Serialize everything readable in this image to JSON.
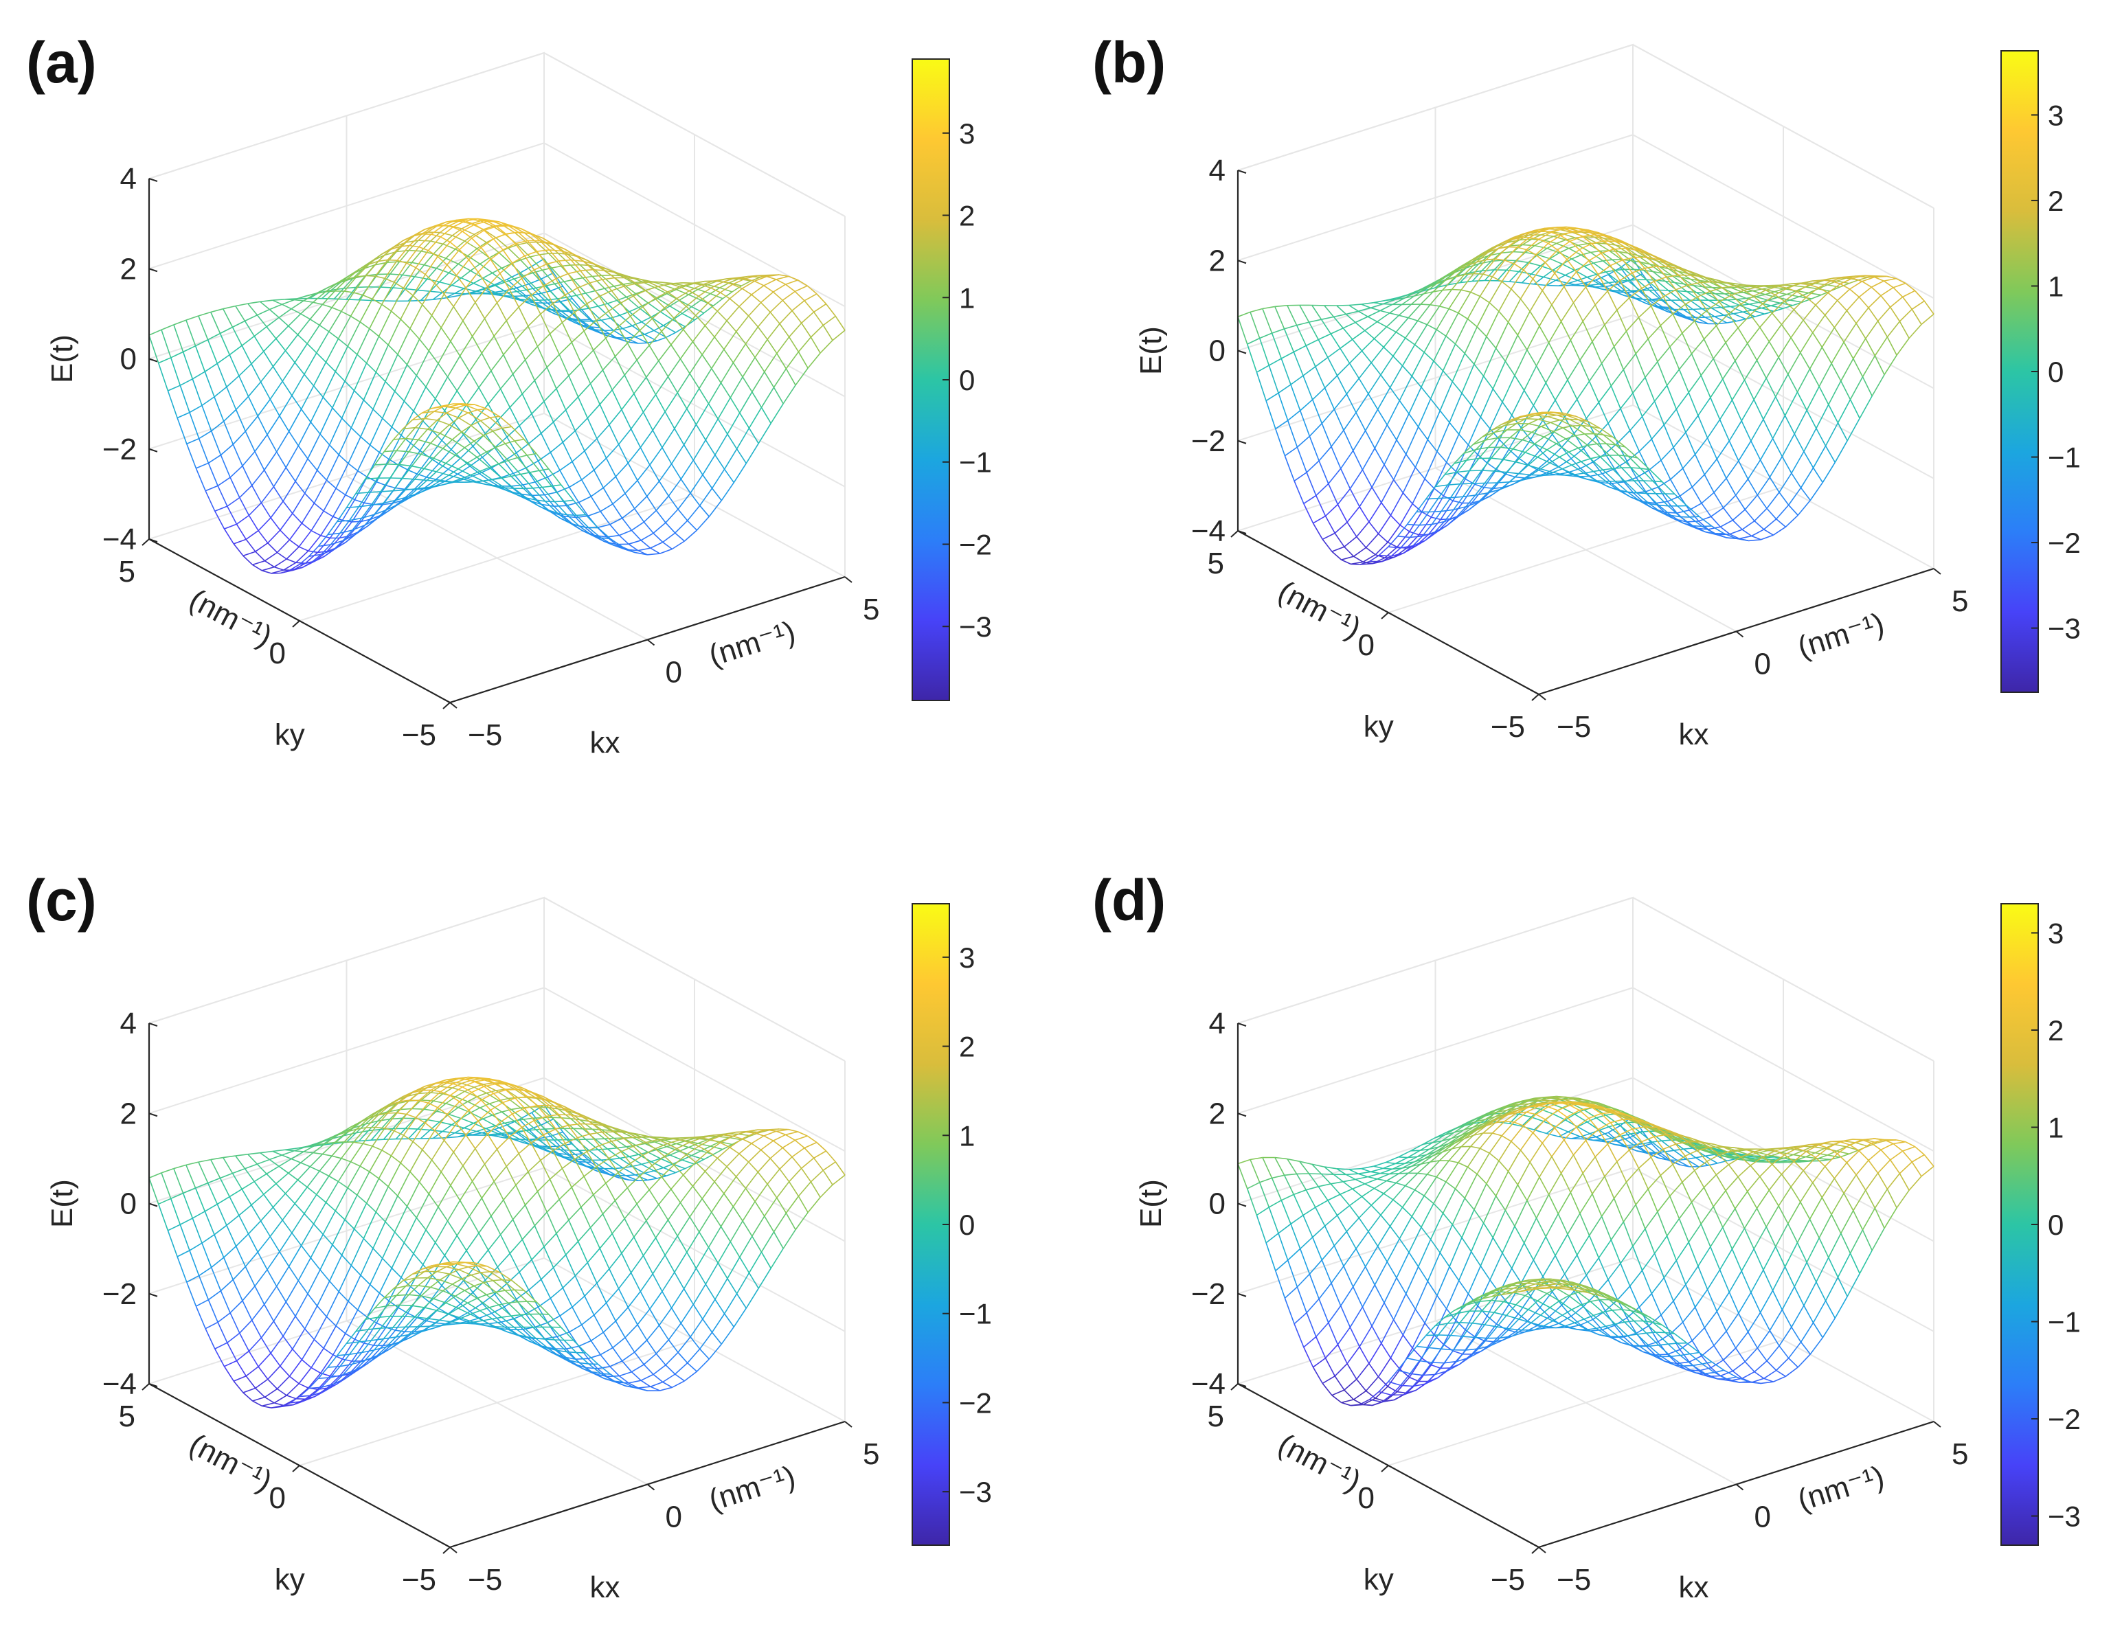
{
  "chart_data": [
    {
      "type": "surface",
      "panel_label": "(a)",
      "xlabel": "kx",
      "xunit": "(nm⁻¹)",
      "ylabel": "ky",
      "yunit": "(nm⁻¹)",
      "zlabel": "E(t)",
      "x_ticks": [
        "−5",
        "0",
        "5"
      ],
      "y_ticks": [
        "−5",
        "0",
        "5"
      ],
      "z_ticks": [
        "−4",
        "−2",
        "0",
        "2",
        "4"
      ],
      "xlim": [
        -5,
        5
      ],
      "ylim": [
        -5,
        5
      ],
      "zlim": [
        -4,
        4
      ],
      "colorbar": {
        "range": [
          -3.9,
          3.9
        ],
        "ticks": [
          "−3",
          "−2",
          "−1",
          "0",
          "1",
          "2",
          "3"
        ],
        "tick_values": [
          -3,
          -2,
          -1,
          0,
          1,
          2,
          3
        ]
      },
      "surface": {
        "A": 2.0,
        "B": 2.0,
        "C": 0.0,
        "grid": 33
      }
    },
    {
      "type": "surface",
      "panel_label": "(b)",
      "xlabel": "kx",
      "xunit": "(nm⁻¹)",
      "ylabel": "ky",
      "yunit": "(nm⁻¹)",
      "zlabel": "E(t)",
      "x_ticks": [
        "−5",
        "0",
        "5"
      ],
      "y_ticks": [
        "−5",
        "0",
        "5"
      ],
      "z_ticks": [
        "−4",
        "−2",
        "0",
        "2",
        "4"
      ],
      "xlim": [
        -5,
        5
      ],
      "ylim": [
        -5,
        5
      ],
      "zlim": [
        -4,
        4
      ],
      "colorbar": {
        "range": [
          -3.75,
          3.75
        ],
        "ticks": [
          "−3",
          "−2",
          "−1",
          "0",
          "1",
          "2",
          "3"
        ],
        "tick_values": [
          -3,
          -2,
          -1,
          0,
          1,
          2,
          3
        ]
      },
      "surface": {
        "A": 1.9,
        "B": 1.9,
        "C": 0.25,
        "grid": 33
      }
    },
    {
      "type": "surface",
      "panel_label": "(c)",
      "xlabel": "kx",
      "xunit": "(nm⁻¹)",
      "ylabel": "ky",
      "yunit": "(nm⁻¹)",
      "zlabel": "E(t)",
      "x_ticks": [
        "−5",
        "0",
        "5"
      ],
      "y_ticks": [
        "−5",
        "0",
        "5"
      ],
      "z_ticks": [
        "−4",
        "−2",
        "0",
        "2",
        "4"
      ],
      "xlim": [
        -5,
        5
      ],
      "ylim": [
        -5,
        5
      ],
      "zlim": [
        -4,
        4
      ],
      "colorbar": {
        "range": [
          -3.6,
          3.6
        ],
        "ticks": [
          "−3",
          "−2",
          "−1",
          "0",
          "1",
          "2",
          "3"
        ],
        "tick_values": [
          -3,
          -2,
          -1,
          0,
          1,
          2,
          3
        ]
      },
      "surface": {
        "A": 1.85,
        "B": 1.8,
        "C": 0.1,
        "grid": 33
      }
    },
    {
      "type": "surface",
      "panel_label": "(d)",
      "xlabel": "kx",
      "xunit": "(nm⁻¹)",
      "ylabel": "ky",
      "yunit": "(nm⁻¹)",
      "zlabel": "E(t)",
      "x_ticks": [
        "−5",
        "0",
        "5"
      ],
      "y_ticks": [
        "−5",
        "0",
        "5"
      ],
      "z_ticks": [
        "−4",
        "−2",
        "0",
        "2",
        "4"
      ],
      "xlim": [
        -5,
        5
      ],
      "ylim": [
        -5,
        5
      ],
      "zlim": [
        -4,
        4
      ],
      "colorbar": {
        "range": [
          -3.3,
          3.3
        ],
        "ticks": [
          "−3",
          "−2",
          "−1",
          "0",
          "1",
          "2",
          "3"
        ],
        "tick_values": [
          -3,
          -2,
          -1,
          0,
          1,
          2,
          3
        ]
      },
      "surface": {
        "A": 1.65,
        "B": 1.65,
        "C": 0.45,
        "grid": 33
      }
    }
  ],
  "colormap": [
    "#3e26a8",
    "#4743f8",
    "#2c7ef8",
    "#1ca6df",
    "#2cc5a5",
    "#80c95a",
    "#d9bd3c",
    "#fec832",
    "#f9fb15"
  ]
}
